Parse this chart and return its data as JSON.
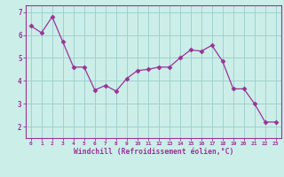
{
  "x": [
    0,
    1,
    2,
    3,
    4,
    5,
    6,
    7,
    8,
    9,
    10,
    11,
    12,
    13,
    14,
    15,
    16,
    17,
    18,
    19,
    20,
    21,
    22,
    23
  ],
  "y": [
    6.4,
    6.1,
    6.8,
    5.7,
    4.6,
    4.6,
    3.6,
    3.8,
    3.55,
    4.1,
    4.45,
    4.5,
    4.6,
    4.6,
    5.0,
    5.35,
    5.3,
    5.55,
    4.85,
    3.65,
    3.65,
    3.0,
    2.2,
    2.2
  ],
  "line_color": "#993399",
  "marker": "D",
  "marker_size": 2.5,
  "bg_color": "#cceee8",
  "grid_color": "#99cccc",
  "xlabel": "Windchill (Refroidissement éolien,°C)",
  "xlabel_color": "#993399",
  "tick_color": "#993399",
  "spine_color": "#993399",
  "ylim": [
    1.5,
    7.3
  ],
  "xlim": [
    -0.5,
    23.5
  ],
  "yticks": [
    2,
    3,
    4,
    5,
    6,
    7
  ],
  "xticks": [
    0,
    1,
    2,
    3,
    4,
    5,
    6,
    7,
    8,
    9,
    10,
    11,
    12,
    13,
    14,
    15,
    16,
    17,
    18,
    19,
    20,
    21,
    22,
    23
  ]
}
